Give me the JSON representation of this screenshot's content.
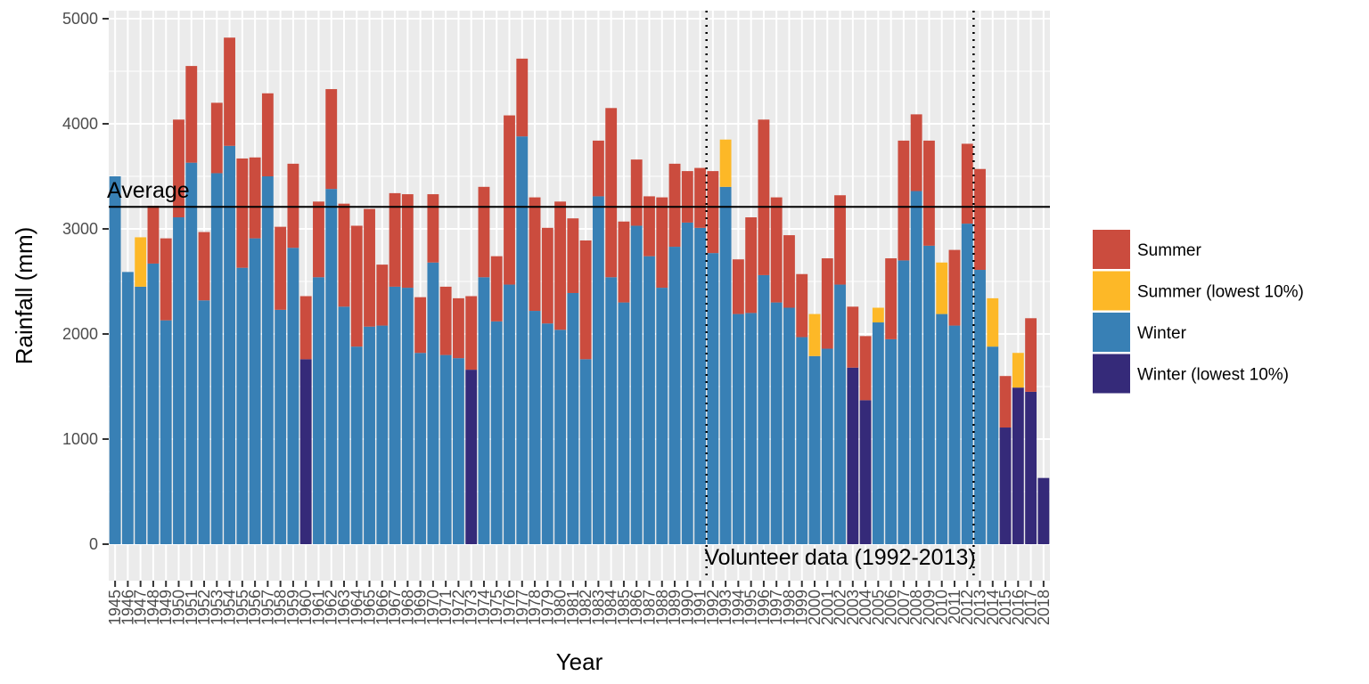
{
  "chart_data": {
    "type": "bar",
    "stacked": true,
    "xlabel": "Year",
    "ylabel": "Rainfall (mm)",
    "ylim": [
      -350,
      5000
    ],
    "y_ticks": [
      0,
      1000,
      2000,
      3000,
      4000,
      5000
    ],
    "grid": true,
    "legend_position": "right",
    "categories": [
      "1945",
      "1946",
      "1947",
      "1948",
      "1949",
      "1950",
      "1951",
      "1952",
      "1953",
      "1954",
      "1955",
      "1956",
      "1957",
      "1958",
      "1959",
      "1960",
      "1961",
      "1962",
      "1963",
      "1964",
      "1965",
      "1966",
      "1967",
      "1968",
      "1969",
      "1970",
      "1971",
      "1972",
      "1973",
      "1974",
      "1975",
      "1976",
      "1977",
      "1978",
      "1979",
      "1980",
      "1981",
      "1982",
      "1983",
      "1984",
      "1985",
      "1986",
      "1987",
      "1988",
      "1989",
      "1990",
      "1991",
      "1992",
      "1993",
      "1994",
      "1995",
      "1996",
      "1997",
      "1998",
      "1999",
      "2000",
      "2001",
      "2002",
      "2003",
      "2004",
      "2005",
      "2006",
      "2007",
      "2008",
      "2009",
      "2010",
      "2011",
      "2012",
      "2013",
      "2014",
      "2015",
      "2016",
      "2017",
      "2018"
    ],
    "winter": [
      3500,
      2590,
      2450,
      2670,
      2130,
      3110,
      3630,
      2320,
      3530,
      3790,
      2630,
      2910,
      3500,
      2230,
      2820,
      1760,
      2540,
      3380,
      2260,
      1880,
      2070,
      2080,
      2450,
      2440,
      1820,
      2680,
      1800,
      1770,
      1660,
      2540,
      2120,
      2470,
      3880,
      2220,
      2100,
      2040,
      2390,
      1760,
      3310,
      2540,
      2300,
      3030,
      2740,
      2440,
      2830,
      3060,
      3010,
      2770,
      3400,
      2190,
      2200,
      2560,
      2300,
      2250,
      1970,
      1790,
      1860,
      2470,
      1680,
      1370,
      2110,
      1950,
      2700,
      3360,
      2840,
      2190,
      2080,
      3050,
      2610,
      1880,
      1110,
      1490,
      1450,
      630
    ],
    "summer": [
      0,
      0,
      470,
      550,
      780,
      930,
      920,
      650,
      670,
      1030,
      1040,
      770,
      790,
      790,
      800,
      600,
      720,
      950,
      980,
      1150,
      1120,
      580,
      890,
      890,
      530,
      650,
      650,
      570,
      700,
      860,
      620,
      1610,
      740,
      1080,
      910,
      1220,
      710,
      1130,
      530,
      1610,
      770,
      630,
      570,
      860,
      790,
      490,
      570,
      780,
      450,
      520,
      910,
      1480,
      1000,
      690,
      600,
      400,
      860,
      850,
      580,
      610,
      140,
      770,
      1140,
      730,
      1000,
      490,
      720,
      760,
      960,
      460,
      490,
      330,
      700,
      0
    ],
    "winter_lowest_10pct_years": [
      "1960",
      "1973",
      "2003",
      "2004",
      "2015",
      "2016",
      "2017",
      "2018"
    ],
    "summer_lowest_10pct_years": [
      "1947",
      "1993",
      "2000",
      "2005",
      "2010",
      "2014",
      "2016"
    ],
    "legend": [
      {
        "label": "Summer",
        "color": "#CB4C3E"
      },
      {
        "label": "Summer (lowest 10%)",
        "color": "#FDB827"
      },
      {
        "label": "Winter",
        "color": "#3880B5"
      },
      {
        "label": "Winter (lowest 10%)",
        "color": "#352A79"
      }
    ],
    "average_line": {
      "value": 3210,
      "label": "Average"
    },
    "volunteer_period": {
      "start": "1992",
      "end": "2013",
      "label": "Volunteer data (1992-2013)"
    }
  }
}
